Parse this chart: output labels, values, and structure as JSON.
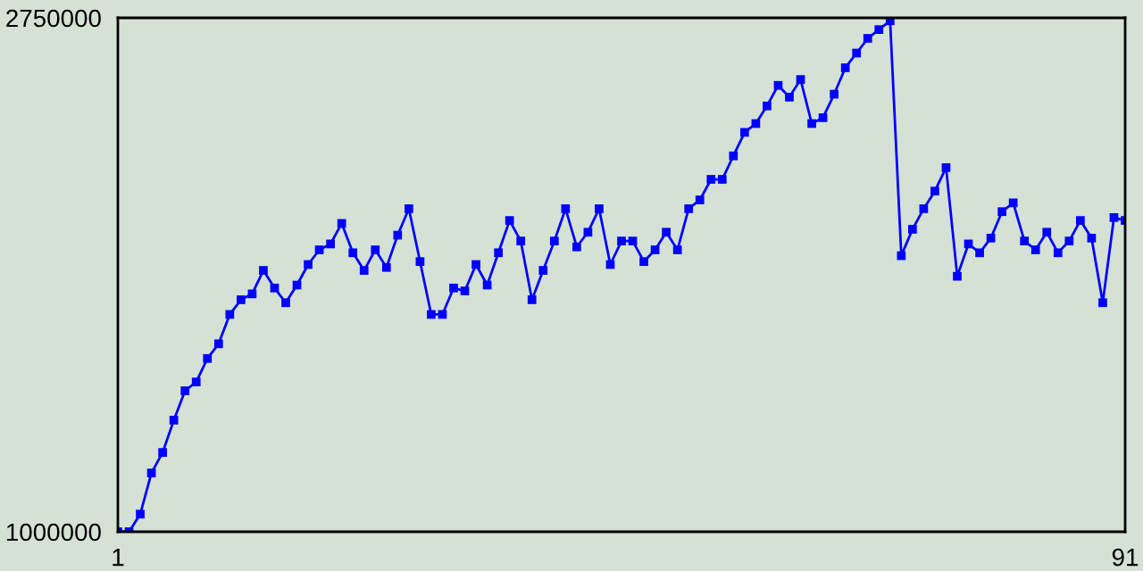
{
  "chart_data": {
    "type": "line",
    "x": [
      1,
      2,
      3,
      4,
      5,
      6,
      7,
      8,
      9,
      10,
      11,
      12,
      13,
      14,
      15,
      16,
      17,
      18,
      19,
      20,
      21,
      22,
      23,
      24,
      25,
      26,
      27,
      28,
      29,
      30,
      31,
      32,
      33,
      34,
      35,
      36,
      37,
      38,
      39,
      40,
      41,
      42,
      43,
      44,
      45,
      46,
      47,
      48,
      49,
      50,
      51,
      52,
      53,
      54,
      55,
      56,
      57,
      58,
      59,
      60,
      61,
      62,
      63,
      64,
      65,
      66,
      67,
      68,
      69,
      70,
      71,
      72,
      73,
      74,
      75,
      76,
      77,
      78,
      79,
      80,
      81,
      82,
      83,
      84,
      85,
      86,
      87,
      88,
      89,
      90,
      91
    ],
    "series": [
      {
        "color": "#0000ff",
        "values": [
          1000000,
          1000000,
          1060000,
          1200000,
          1270000,
          1380000,
          1480000,
          1510000,
          1590000,
          1640000,
          1740000,
          1790000,
          1810000,
          1890000,
          1830000,
          1780000,
          1840000,
          1910000,
          1960000,
          1980000,
          2050000,
          1950000,
          1890000,
          1960000,
          1900000,
          2010000,
          2100000,
          1920000,
          1740000,
          1740000,
          1830000,
          1820000,
          1910000,
          1840000,
          1950000,
          2060000,
          1990000,
          1790000,
          1890000,
          1990000,
          2100000,
          1970000,
          2020000,
          2100000,
          1910000,
          1990000,
          1990000,
          1920000,
          1960000,
          2020000,
          1960000,
          2100000,
          2130000,
          2200000,
          2200000,
          2280000,
          2360000,
          2390000,
          2450000,
          2520000,
          2480000,
          2540000,
          2390000,
          2410000,
          2490000,
          2580000,
          2630000,
          2680000,
          2710000,
          2740000,
          1940000,
          2030000,
          2100000,
          2160000,
          2240000,
          1870000,
          1980000,
          1950000,
          2000000,
          2090000,
          2120000,
          1990000,
          1960000,
          2020000,
          1950000,
          1990000,
          2060000,
          2000000,
          1780000,
          2070000,
          2060000
        ]
      }
    ],
    "xlim": [
      1,
      91
    ],
    "xticks": [
      1,
      91
    ],
    "ylim": [
      1000000,
      2750000
    ],
    "yticks": [
      1000000,
      2750000
    ],
    "marker": "square",
    "line_style": "solid"
  }
}
